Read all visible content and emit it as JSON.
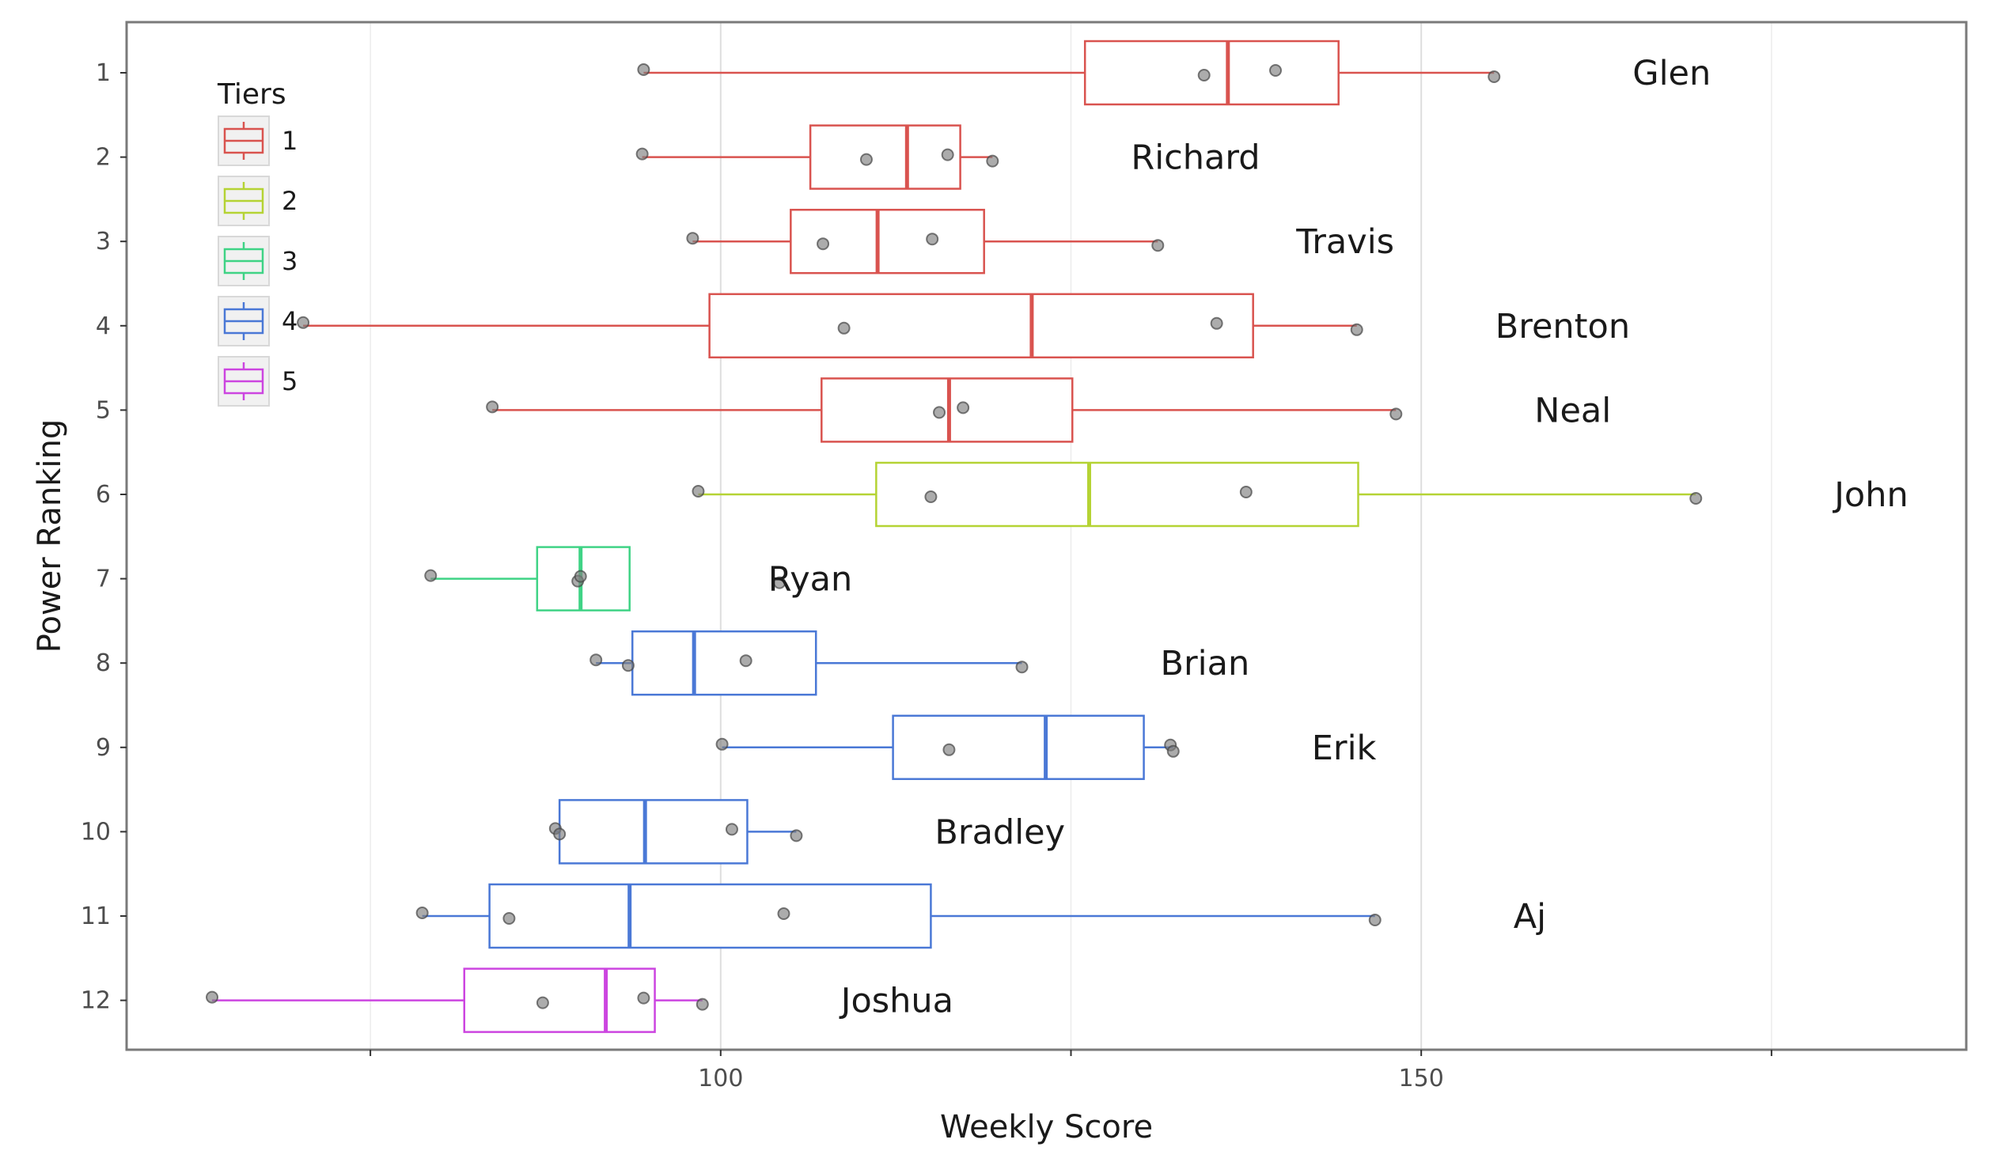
{
  "chart_data": {
    "type": "boxplot",
    "xlabel": "Weekly Score",
    "ylabel": "Power Ranking",
    "xlim": [
      57.6,
      188.9
    ],
    "x_ticks": [
      100,
      150
    ],
    "x_minor_ticks": [
      75,
      125,
      175
    ],
    "grid": true,
    "legend": {
      "title": "Tiers",
      "placement": "top-left",
      "entries": [
        {
          "label": "1",
          "color": "#d9534f"
        },
        {
          "label": "2",
          "color": "#b5d334"
        },
        {
          "label": "3",
          "color": "#3fd385"
        },
        {
          "label": "4",
          "color": "#4a78d6"
        },
        {
          "label": "5",
          "color": "#cc45e0"
        }
      ]
    },
    "teams": [
      {
        "rank": "1",
        "name": "Glen",
        "tier": "1",
        "box": {
          "whisker_low": 94.5,
          "q1": 126.0,
          "median": 136.2,
          "q3": 144.1,
          "whisker_high": 155.2
        },
        "points": [
          94.5,
          134.5,
          139.6,
          155.2
        ]
      },
      {
        "rank": "2",
        "name": "Richard",
        "tier": "1",
        "box": {
          "whisker_low": 94.4,
          "q1": 106.4,
          "median": 113.3,
          "q3": 117.1,
          "whisker_high": 119.4
        },
        "points": [
          94.4,
          110.4,
          116.2,
          119.4
        ]
      },
      {
        "rank": "3",
        "name": "Travis",
        "tier": "1",
        "box": {
          "whisker_low": 98.0,
          "q1": 105.0,
          "median": 111.2,
          "q3": 118.8,
          "whisker_high": 131.2
        },
        "points": [
          98.0,
          107.3,
          115.1,
          131.2
        ]
      },
      {
        "rank": "4",
        "name": "Brenton",
        "tier": "1",
        "box": {
          "whisker_low": 70.2,
          "q1": 99.2,
          "median": 122.2,
          "q3": 138.0,
          "whisker_high": 145.4
        },
        "points": [
          70.2,
          108.8,
          135.4,
          145.4
        ]
      },
      {
        "rank": "5",
        "name": "Neal",
        "tier": "1",
        "box": {
          "whisker_low": 83.7,
          "q1": 107.2,
          "median": 116.3,
          "q3": 125.1,
          "whisker_high": 148.2
        },
        "points": [
          83.7,
          115.6,
          117.3,
          148.2
        ]
      },
      {
        "rank": "6",
        "name": "John",
        "tier": "2",
        "box": {
          "whisker_low": 98.4,
          "q1": 111.1,
          "median": 126.3,
          "q3": 145.5,
          "whisker_high": 169.6
        },
        "points": [
          98.4,
          115.0,
          137.5,
          169.6
        ]
      },
      {
        "rank": "7",
        "name": "Ryan",
        "tier": "3",
        "box": {
          "whisker_low": 79.3,
          "q1": 86.9,
          "median": 90.0,
          "q3": 93.5,
          "whisker_high": 93.5
        },
        "points": [
          79.3,
          89.8,
          90.0,
          104.2
        ]
      },
      {
        "rank": "8",
        "name": "Brian",
        "tier": "4",
        "box": {
          "whisker_low": 91.1,
          "q1": 93.7,
          "median": 98.1,
          "q3": 106.8,
          "whisker_high": 121.5
        },
        "points": [
          91.1,
          93.4,
          101.8,
          121.5
        ]
      },
      {
        "rank": "9",
        "name": "Erik",
        "tier": "4",
        "box": {
          "whisker_low": 100.1,
          "q1": 112.3,
          "median": 123.2,
          "q3": 130.2,
          "whisker_high": 132.3
        },
        "points": [
          100.1,
          116.3,
          132.1,
          132.3
        ]
      },
      {
        "rank": "10",
        "name": "Bradley",
        "tier": "4",
        "box": {
          "whisker_low": 88.2,
          "q1": 88.5,
          "median": 94.6,
          "q3": 101.9,
          "whisker_high": 105.4
        },
        "points": [
          88.2,
          88.5,
          100.8,
          105.4
        ]
      },
      {
        "rank": "11",
        "name": "Aj",
        "tier": "4",
        "box": {
          "whisker_low": 78.7,
          "q1": 83.5,
          "median": 93.5,
          "q3": 115.0,
          "whisker_high": 146.7
        },
        "points": [
          78.7,
          84.9,
          104.5,
          146.7
        ]
      },
      {
        "rank": "12",
        "name": "Joshua",
        "tier": "5",
        "box": {
          "whisker_low": 63.7,
          "q1": 81.7,
          "median": 91.8,
          "q3": 95.3,
          "whisker_high": 98.7
        },
        "points": [
          63.7,
          87.3,
          94.5,
          98.7
        ]
      }
    ]
  }
}
